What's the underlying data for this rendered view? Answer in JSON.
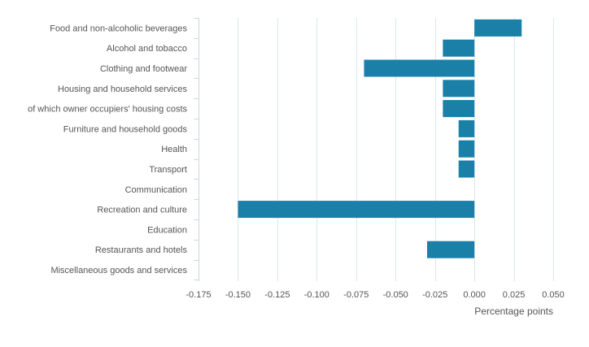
{
  "chart_data": {
    "type": "bar",
    "orientation": "horizontal",
    "title": "",
    "xlabel": "Percentage points",
    "ylabel": "",
    "xlim": [
      -0.175,
      0.05
    ],
    "xticks": [
      -0.175,
      -0.15,
      -0.125,
      -0.1,
      -0.075,
      -0.05,
      -0.025,
      0,
      0.025,
      0.05
    ],
    "xtick_labels": [
      "-0.175",
      "-0.150",
      "-0.125",
      "-0.100",
      "-0.075",
      "-0.050",
      "-0.025",
      "0.000",
      "0.025",
      "0.050"
    ],
    "grid": true,
    "bar_color": "#1b80a8",
    "categories": [
      "Food and non-alcoholic beverages",
      "Alcohol and tobacco",
      "Clothing and footwear",
      "Housing and household services",
      "of which owner occupiers' housing costs",
      "Furniture and household goods",
      "Health",
      "Transport",
      "Communication",
      "Recreation and culture",
      "Education",
      "Restaurants and hotels",
      "Miscellaneous goods and services"
    ],
    "values": [
      0.03,
      -0.02,
      -0.07,
      -0.02,
      -0.02,
      -0.01,
      -0.01,
      -0.01,
      0,
      -0.15,
      0,
      -0.03,
      0
    ]
  }
}
